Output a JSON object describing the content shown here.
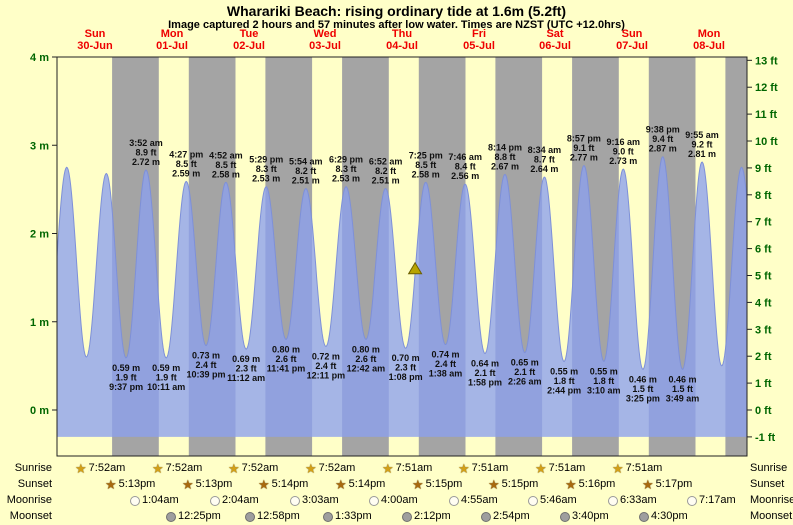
{
  "header": {
    "title": "Wharariki Beach: rising  ordinary tide at 1.6m (5.2ft)",
    "subtitle": "Image captured 2 hours and 57 minutes after low water. Times are NZST (UTC +12.0hrs)"
  },
  "days": [
    {
      "weekday": "Sun",
      "date": "30-Jun"
    },
    {
      "weekday": "Mon",
      "date": "01-Jul"
    },
    {
      "weekday": "Tue",
      "date": "02-Jul"
    },
    {
      "weekday": "Wed",
      "date": "03-Jul"
    },
    {
      "weekday": "Thu",
      "date": "04-Jul"
    },
    {
      "weekday": "Fri",
      "date": "05-Jul"
    },
    {
      "weekday": "Sat",
      "date": "06-Jul"
    },
    {
      "weekday": "Sun",
      "date": "07-Jul"
    },
    {
      "weekday": "Mon",
      "date": "08-Jul"
    }
  ],
  "chart_data": {
    "type": "area",
    "title": "Wharariki Beach tide curve",
    "x_range_days": 9,
    "y_axis_left": {
      "unit": "m",
      "values": [
        4,
        3,
        2,
        1,
        0
      ],
      "labels": [
        "4 m",
        "3 m",
        "2 m",
        "1 m",
        "0 m"
      ]
    },
    "y_axis_right": {
      "unit": "ft",
      "values": [
        13,
        12,
        11,
        10,
        9,
        8,
        7,
        6,
        5,
        4,
        3,
        2,
        1,
        0,
        -1
      ],
      "labels": [
        "13 ft",
        "12 ft",
        "11 ft",
        "10 ft",
        "9 ft",
        "8 ft",
        "7 ft",
        "6 ft",
        "5 ft",
        "4 ft",
        "3 ft",
        "2 ft",
        "1 ft",
        "0 ft",
        "-1 ft"
      ]
    },
    "current_tide": {
      "height_m": 1.6,
      "height_ft": 5.2,
      "state": "rising",
      "t": 112.1
    },
    "tide_events": [
      {
        "kind": "low",
        "t": -3.3,
        "v": 0.6
      },
      {
        "kind": "high",
        "t": 3.05,
        "v": 2.75
      },
      {
        "kind": "low",
        "t": 9.2,
        "v": 0.6
      },
      {
        "kind": "high",
        "t": 15.45,
        "v": 2.68
      },
      {
        "kind": "low",
        "t": 21.62,
        "v": 0.59,
        "m": "0.59 m",
        "ft": "1.9 ft",
        "time": "9:37 pm"
      },
      {
        "kind": "high",
        "t": 27.87,
        "v": 2.72,
        "m": "2.72 m",
        "ft": "8.9 ft",
        "time": "3:52 am"
      },
      {
        "kind": "low",
        "t": 34.18,
        "v": 0.59,
        "m": "0.59 m",
        "ft": "1.9 ft",
        "time": "10:11 am"
      },
      {
        "kind": "high",
        "t": 40.45,
        "v": 2.59,
        "m": "2.59 m",
        "ft": "8.5 ft",
        "time": "4:27 pm"
      },
      {
        "kind": "low",
        "t": 46.65,
        "v": 0.73,
        "m": "0.73 m",
        "ft": "2.4 ft",
        "time": "10:39 pm"
      },
      {
        "kind": "high",
        "t": 52.87,
        "v": 2.58,
        "m": "2.58 m",
        "ft": "8.5 ft",
        "time": "4:52 am"
      },
      {
        "kind": "low",
        "t": 59.2,
        "v": 0.69,
        "m": "0.69 m",
        "ft": "2.3 ft",
        "time": "11:12 am"
      },
      {
        "kind": "high",
        "t": 65.48,
        "v": 2.53,
        "m": "2.53 m",
        "ft": "8.3 ft",
        "time": "5:29 pm"
      },
      {
        "kind": "low",
        "t": 71.68,
        "v": 0.8,
        "m": "0.80 m",
        "ft": "2.6 ft",
        "time": "11:41 pm"
      },
      {
        "kind": "high",
        "t": 77.9,
        "v": 2.51,
        "m": "2.51 m",
        "ft": "8.2 ft",
        "time": "5:54 am"
      },
      {
        "kind": "low",
        "t": 84.18,
        "v": 0.72,
        "m": "0.72 m",
        "ft": "2.4 ft",
        "time": "12:11 pm"
      },
      {
        "kind": "high",
        "t": 90.48,
        "v": 2.53,
        "m": "2.53 m",
        "ft": "8.3 ft",
        "time": "6:29 pm"
      },
      {
        "kind": "low",
        "t": 96.7,
        "v": 0.8,
        "m": "0.80 m",
        "ft": "2.6 ft",
        "time": "12:42 am"
      },
      {
        "kind": "high",
        "t": 102.87,
        "v": 2.51,
        "m": "2.51 m",
        "ft": "8.2 ft",
        "time": "6:52 am"
      },
      {
        "kind": "low",
        "t": 109.13,
        "v": 0.7,
        "m": "0.70 m",
        "ft": "2.3 ft",
        "time": "1:08 pm"
      },
      {
        "kind": "high",
        "t": 115.42,
        "v": 2.58,
        "m": "2.58 m",
        "ft": "8.5 ft",
        "time": "7:25 pm"
      },
      {
        "kind": "low",
        "t": 121.63,
        "v": 0.74,
        "m": "0.74 m",
        "ft": "2.4 ft",
        "time": "1:38 am"
      },
      {
        "kind": "high",
        "t": 127.77,
        "v": 2.56,
        "m": "2.56 m",
        "ft": "8.4 ft",
        "time": "7:46 am"
      },
      {
        "kind": "low",
        "t": 133.97,
        "v": 0.64,
        "m": "0.64 m",
        "ft": "2.1 ft",
        "time": "1:58 pm"
      },
      {
        "kind": "high",
        "t": 140.23,
        "v": 2.67,
        "m": "2.67 m",
        "ft": "8.8 ft",
        "time": "8:14 pm"
      },
      {
        "kind": "low",
        "t": 146.43,
        "v": 0.65,
        "m": "0.65 m",
        "ft": "2.1 ft",
        "time": "2:26 am"
      },
      {
        "kind": "high",
        "t": 152.57,
        "v": 2.64,
        "m": "2.64 m",
        "ft": "8.7 ft",
        "time": "8:34 am"
      },
      {
        "kind": "low",
        "t": 158.73,
        "v": 0.55,
        "m": "0.55 m",
        "ft": "1.8 ft",
        "time": "2:44 pm"
      },
      {
        "kind": "high",
        "t": 164.95,
        "v": 2.77,
        "m": "2.77 m",
        "ft": "9.1 ft",
        "time": "8:57 pm"
      },
      {
        "kind": "low",
        "t": 171.17,
        "v": 0.55,
        "m": "0.55 m",
        "ft": "1.8 ft",
        "time": "3:10 am"
      },
      {
        "kind": "high",
        "t": 177.27,
        "v": 2.73,
        "m": "2.73 m",
        "ft": "9.0 ft",
        "time": "9:16 am"
      },
      {
        "kind": "low",
        "t": 183.42,
        "v": 0.46,
        "m": "0.46 m",
        "ft": "1.5 ft",
        "time": "3:25 pm"
      },
      {
        "kind": "high",
        "t": 189.63,
        "v": 2.87,
        "m": "2.87 m",
        "ft": "9.4 ft",
        "time": "9:38 pm"
      },
      {
        "kind": "low",
        "t": 195.82,
        "v": 0.46,
        "m": "0.46 m",
        "ft": "1.5 ft",
        "time": "3:49 am"
      },
      {
        "kind": "high",
        "t": 201.92,
        "v": 2.81,
        "m": "2.81 m",
        "ft": "9.2 ft",
        "time": "9:55 am"
      },
      {
        "kind": "low",
        "t": 208.1,
        "v": 0.5
      },
      {
        "kind": "high",
        "t": 214.3,
        "v": 2.75
      },
      {
        "kind": "low",
        "t": 220.5,
        "v": 0.55
      }
    ],
    "colors": {
      "day_band": "#ffffc8",
      "night_band": "#a4a4a4",
      "tide_fill": "#8ca0ee",
      "tide_fill_opacity": 0.78,
      "tide_line": "#7e90d8",
      "marker": "#b8a400",
      "marker_edge": "#6b5e00",
      "day_label_red": "#ee0000",
      "axis_green": "#006600"
    }
  },
  "astro": {
    "rows": [
      {
        "key": "sunrise",
        "label": "Sunrise",
        "icon": "star",
        "icon_color": "#d2a018",
        "entries": [
          {
            "day": 0,
            "time": "7:52am"
          },
          {
            "day": 1,
            "time": "7:52am"
          },
          {
            "day": 2,
            "time": "7:52am"
          },
          {
            "day": 3,
            "time": "7:52am"
          },
          {
            "day": 4,
            "time": "7:51am"
          },
          {
            "day": 5,
            "time": "7:51am"
          },
          {
            "day": 6,
            "time": "7:51am"
          },
          {
            "day": 7,
            "time": "7:51am"
          }
        ]
      },
      {
        "key": "sunset",
        "label": "Sunset",
        "icon": "star",
        "icon_color": "#a86a10",
        "entries": [
          {
            "day": 0,
            "time": "5:13pm"
          },
          {
            "day": 1,
            "time": "5:13pm"
          },
          {
            "day": 2,
            "time": "5:14pm"
          },
          {
            "day": 3,
            "time": "5:14pm"
          },
          {
            "day": 4,
            "time": "5:15pm"
          },
          {
            "day": 5,
            "time": "5:15pm"
          },
          {
            "day": 6,
            "time": "5:16pm"
          },
          {
            "day": 7,
            "time": "5:17pm"
          }
        ]
      },
      {
        "key": "moonrise",
        "label": "Moonrise",
        "icon": "moon",
        "icon_color": "#fffdf2",
        "icon_border": "#999999",
        "entries": [
          {
            "day": 1,
            "time": "1:04am"
          },
          {
            "day": 2,
            "time": "2:04am"
          },
          {
            "day": 3,
            "time": "3:03am"
          },
          {
            "day": 4,
            "time": "4:00am"
          },
          {
            "day": 5,
            "time": "4:55am"
          },
          {
            "day": 6,
            "time": "5:46am"
          },
          {
            "day": 7,
            "time": "6:33am"
          },
          {
            "day": 8,
            "time": "7:17am"
          }
        ]
      },
      {
        "key": "moonset",
        "label": "Moonset",
        "icon": "moon",
        "icon_color": "#9e9e9e",
        "icon_border": "#6f6f6f",
        "entries": [
          {
            "day": 1,
            "time": "12:25pm"
          },
          {
            "day": 2,
            "time": "12:58pm"
          },
          {
            "day": 3,
            "time": "1:33pm"
          },
          {
            "day": 4,
            "time": "2:12pm"
          },
          {
            "day": 5,
            "time": "2:54pm"
          },
          {
            "day": 6,
            "time": "3:40pm"
          },
          {
            "day": 7,
            "time": "4:30pm"
          }
        ]
      }
    ]
  }
}
